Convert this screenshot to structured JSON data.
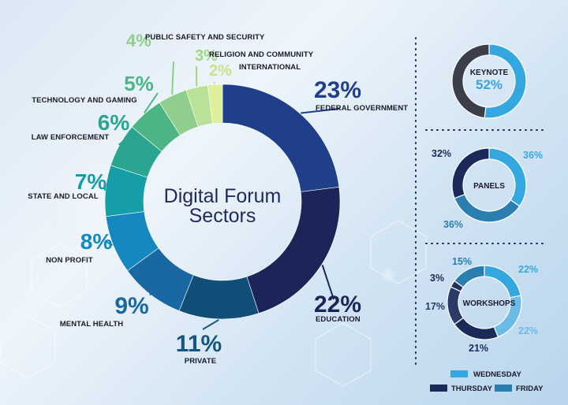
{
  "colors": {
    "wednesday": "#35a7e0",
    "thursday": "#1c2a5a",
    "friday": "#2b7fb0",
    "keynote_rest": "#3c3f4a"
  },
  "chart_data": [
    {
      "type": "pie",
      "variant": "donut",
      "title": "Digital Forum Sectors",
      "slices": [
        {
          "label": "FEDERAL GOVERNMENT",
          "value": 23,
          "pct_text": "23%",
          "color": "#1f3f8a",
          "pct_color": "#1f3f8a"
        },
        {
          "label": "EDUCATION",
          "value": 22,
          "pct_text": "22%",
          "color": "#1c2558",
          "pct_color": "#1c2558"
        },
        {
          "label": "PRIVATE",
          "value": 11,
          "pct_text": "11%",
          "color": "#0f4f78",
          "pct_color": "#16557f"
        },
        {
          "label": "MENTAL HEALTH",
          "value": 9,
          "pct_text": "9%",
          "color": "#1a68a3",
          "pct_color": "#1a68a3"
        },
        {
          "label": "NON PROFIT",
          "value": 8,
          "pct_text": "8%",
          "color": "#1588bf",
          "pct_color": "#1588bf"
        },
        {
          "label": "STATE AND LOCAL",
          "value": 7,
          "pct_text": "7%",
          "color": "#169ea8",
          "pct_color": "#169ea8"
        },
        {
          "label": "LAW ENFORCEMENT",
          "value": 6,
          "pct_text": "6%",
          "color": "#2aa58f",
          "pct_color": "#2aa58f"
        },
        {
          "label": "TECHNOLOGY AND GAMING",
          "value": 5,
          "pct_text": "5%",
          "color": "#4db584",
          "pct_color": "#4db584"
        },
        {
          "label": "PUBLIC SAFETY AND SECURITY",
          "value": 4,
          "pct_text": "4%",
          "color": "#8fce8c",
          "pct_color": "#8fce8c"
        },
        {
          "label": "RELIGION AND COMMUNITY",
          "value": 3,
          "pct_text": "3%",
          "color": "#b9e197",
          "pct_color": "#a3d584"
        },
        {
          "label": "INTERNATIONAL",
          "value": 2,
          "pct_text": "2%",
          "color": "#dfee9a",
          "pct_color": "#c9e289"
        }
      ]
    },
    {
      "type": "pie",
      "variant": "donut",
      "title": "KEYNOTE",
      "center_value": "52%",
      "slices": [
        {
          "name": "WEDNESDAY",
          "value": 52
        },
        {
          "name": "",
          "value": 48
        }
      ]
    },
    {
      "type": "pie",
      "variant": "donut",
      "title": "PANELS",
      "slices": [
        {
          "name": "WEDNESDAY",
          "value": 36,
          "pct_text": "36%"
        },
        {
          "name": "FRIDAY",
          "value": 36,
          "pct_text": "36%"
        },
        {
          "name": "THURSDAY",
          "value": 32,
          "pct_text": "32%"
        }
      ]
    },
    {
      "type": "pie",
      "variant": "donut",
      "title": "WORKSHOPS",
      "slices": [
        {
          "name": "WEDNESDAY",
          "value": 22,
          "pct_text": "22%"
        },
        {
          "name": "WEDNESDAY",
          "value": 22,
          "pct_text": "22%"
        },
        {
          "name": "THURSDAY",
          "value": 21,
          "pct_text": "21%"
        },
        {
          "name": "THURSDAY",
          "value": 17,
          "pct_text": "17%"
        },
        {
          "name": "FRIDAY",
          "value": 3,
          "pct_text": "3%"
        },
        {
          "name": "FRIDAY",
          "value": 15,
          "pct_text": "15%"
        }
      ]
    }
  ],
  "legend": {
    "wednesday": "WEDNESDAY",
    "thursday": "THURSDAY",
    "friday": "FRIDAY"
  }
}
